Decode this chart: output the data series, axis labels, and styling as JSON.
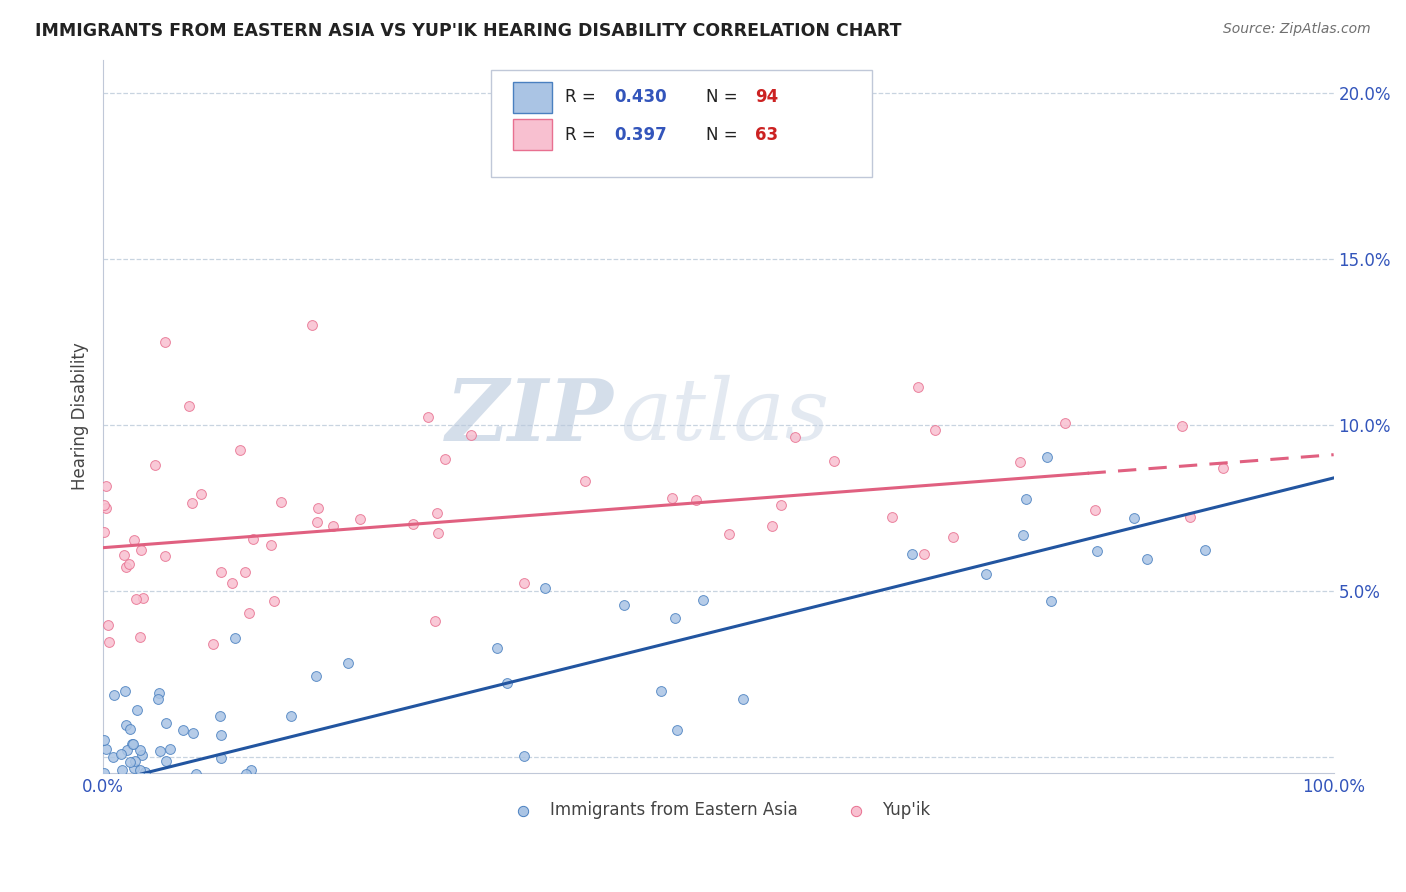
{
  "title": "IMMIGRANTS FROM EASTERN ASIA VS YUP'IK HEARING DISABILITY CORRELATION CHART",
  "source": "Source: ZipAtlas.com",
  "ylabel": "Hearing Disability",
  "watermark_zip": "ZIP",
  "watermark_atlas": "atlas",
  "series1": {
    "label": "Immigrants from Eastern Asia",
    "R": 0.43,
    "N": 94,
    "marker_color": "#aac4e4",
    "marker_edge_color": "#4a80c0",
    "line_color": "#2255a0"
  },
  "series2": {
    "label": "Yup'ik",
    "R": 0.397,
    "N": 63,
    "marker_color": "#f8c0d0",
    "marker_edge_color": "#e87090",
    "line_color": "#e06080"
  },
  "xmin": 0.0,
  "xmax": 1.0,
  "ymin": -0.005,
  "ymax": 0.21,
  "yticks": [
    0.0,
    0.05,
    0.1,
    0.15,
    0.2
  ],
  "ytick_labels": [
    "",
    "5.0%",
    "10.0%",
    "15.0%",
    "20.0%"
  ],
  "background_color": "#ffffff",
  "grid_color": "#c8d4e0",
  "title_color": "#222222",
  "axis_label_color": "#3355bb",
  "line1_intercept": -0.008,
  "line1_slope": 0.092,
  "line2_intercept": 0.063,
  "line2_slope": 0.028,
  "line2_dash_start": 0.8
}
